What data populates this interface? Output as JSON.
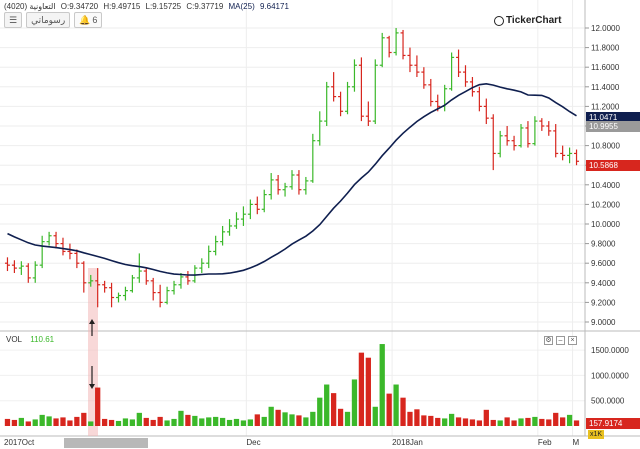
{
  "header": {
    "symbol": "التعاونية (4020)",
    "open": "O:9.34720",
    "high": "H:9.49715",
    "low": "L:9.15725",
    "close": "C:9.37719",
    "ma_label": "MA(25)",
    "ma_value": "9.64171"
  },
  "toolbar": {
    "drawings_label": "رسوماتي",
    "alerts_count": "6"
  },
  "logo": {
    "text": "TickerChart"
  },
  "price_axis": {
    "ticks": [
      "12.0000",
      "11.8000",
      "11.6000",
      "11.4000",
      "11.2000",
      "11.0000",
      "10.8000",
      "10.6000",
      "10.4000",
      "10.2000",
      "10.0000",
      "9.8000",
      "9.6000",
      "9.4000",
      "9.2000",
      "9.0000"
    ],
    "ma_label": "11.0471",
    "last_close_label": "10.9955",
    "current_label": "10.5868",
    "colors": {
      "ma_label_bg": "#0f1f4f",
      "last_close_bg": "#9a9a9a",
      "current_bg": "#d7261e"
    }
  },
  "volume": {
    "legend_name": "VOL",
    "legend_value": "110.61",
    "ticks": [
      "1500.0000",
      "1000.0000",
      "500.0000"
    ],
    "current_label": "157.9174",
    "unit_badge": "x1K"
  },
  "time_axis": {
    "labels": [
      "2017Oct",
      "Dec",
      "2018Jan",
      "Feb",
      "M"
    ]
  },
  "colors": {
    "up": "#3bb82a",
    "down": "#d7261e",
    "ma": "#0f1f4f"
  },
  "chart_data": {
    "type": "bar",
    "price_range": [
      9.0,
      12.0
    ],
    "volume_range": [
      0,
      1700
    ],
    "ma_period": 25,
    "bars": [
      {
        "o": 9.6,
        "h": 9.66,
        "l": 9.52,
        "c": 9.58
      },
      {
        "o": 9.58,
        "h": 9.63,
        "l": 9.5,
        "c": 9.55
      },
      {
        "o": 9.55,
        "h": 9.62,
        "l": 9.48,
        "c": 9.57
      },
      {
        "o": 9.57,
        "h": 9.6,
        "l": 9.4,
        "c": 9.45
      },
      {
        "o": 9.45,
        "h": 9.62,
        "l": 9.4,
        "c": 9.58
      },
      {
        "o": 9.58,
        "h": 9.88,
        "l": 9.55,
        "c": 9.82
      },
      {
        "o": 9.82,
        "h": 9.92,
        "l": 9.78,
        "c": 9.88
      },
      {
        "o": 9.88,
        "h": 9.92,
        "l": 9.75,
        "c": 9.8
      },
      {
        "o": 9.8,
        "h": 9.86,
        "l": 9.68,
        "c": 9.72
      },
      {
        "o": 9.72,
        "h": 9.8,
        "l": 9.64,
        "c": 9.7
      },
      {
        "o": 9.7,
        "h": 9.74,
        "l": 9.55,
        "c": 9.6
      },
      {
        "o": 9.6,
        "h": 9.62,
        "l": 9.3,
        "c": 9.4
      },
      {
        "o": 9.4,
        "h": 9.48,
        "l": 9.36,
        "c": 9.42
      },
      {
        "o": 9.42,
        "h": 9.55,
        "l": 9.15,
        "c": 9.38
      },
      {
        "o": 9.38,
        "h": 9.42,
        "l": 9.3,
        "c": 9.35
      },
      {
        "o": 9.35,
        "h": 9.4,
        "l": 9.15,
        "c": 9.25
      },
      {
        "o": 9.25,
        "h": 9.3,
        "l": 9.2,
        "c": 9.27
      },
      {
        "o": 9.27,
        "h": 9.36,
        "l": 9.22,
        "c": 9.32
      },
      {
        "o": 9.32,
        "h": 9.48,
        "l": 9.3,
        "c": 9.45
      },
      {
        "o": 9.45,
        "h": 9.7,
        "l": 9.4,
        "c": 9.52
      },
      {
        "o": 9.52,
        "h": 9.55,
        "l": 9.38,
        "c": 9.42
      },
      {
        "o": 9.42,
        "h": 9.45,
        "l": 9.22,
        "c": 9.3
      },
      {
        "o": 9.3,
        "h": 9.38,
        "l": 9.15,
        "c": 9.2
      },
      {
        "o": 9.2,
        "h": 9.36,
        "l": 9.18,
        "c": 9.32
      },
      {
        "o": 9.32,
        "h": 9.42,
        "l": 9.28,
        "c": 9.38
      },
      {
        "o": 9.38,
        "h": 9.5,
        "l": 9.34,
        "c": 9.46
      },
      {
        "o": 9.46,
        "h": 9.52,
        "l": 9.38,
        "c": 9.42
      },
      {
        "o": 9.42,
        "h": 9.58,
        "l": 9.4,
        "c": 9.55
      },
      {
        "o": 9.55,
        "h": 9.65,
        "l": 9.5,
        "c": 9.6
      },
      {
        "o": 9.6,
        "h": 9.78,
        "l": 9.55,
        "c": 9.72
      },
      {
        "o": 9.72,
        "h": 9.88,
        "l": 9.68,
        "c": 9.82
      },
      {
        "o": 9.82,
        "h": 9.98,
        "l": 9.78,
        "c": 9.92
      },
      {
        "o": 9.92,
        "h": 10.05,
        "l": 9.88,
        "c": 9.98
      },
      {
        "o": 9.98,
        "h": 10.12,
        "l": 9.95,
        "c": 10.05
      },
      {
        "o": 10.05,
        "h": 10.18,
        "l": 9.98,
        "c": 10.1
      },
      {
        "o": 10.1,
        "h": 10.25,
        "l": 10.05,
        "c": 10.2
      },
      {
        "o": 10.2,
        "h": 10.28,
        "l": 10.1,
        "c": 10.15
      },
      {
        "o": 10.15,
        "h": 10.35,
        "l": 10.12,
        "c": 10.3
      },
      {
        "o": 10.3,
        "h": 10.52,
        "l": 10.25,
        "c": 10.45
      },
      {
        "o": 10.45,
        "h": 10.5,
        "l": 10.3,
        "c": 10.35
      },
      {
        "o": 10.35,
        "h": 10.42,
        "l": 10.28,
        "c": 10.38
      },
      {
        "o": 10.38,
        "h": 10.55,
        "l": 10.35,
        "c": 10.5
      },
      {
        "o": 10.5,
        "h": 10.55,
        "l": 10.3,
        "c": 10.35
      },
      {
        "o": 10.35,
        "h": 10.48,
        "l": 10.3,
        "c": 10.44
      },
      {
        "o": 10.44,
        "h": 10.92,
        "l": 10.42,
        "c": 10.85
      },
      {
        "o": 10.85,
        "h": 11.15,
        "l": 10.8,
        "c": 11.05
      },
      {
        "o": 11.05,
        "h": 11.45,
        "l": 11.0,
        "c": 11.4
      },
      {
        "o": 11.4,
        "h": 11.55,
        "l": 11.25,
        "c": 11.3
      },
      {
        "o": 11.3,
        "h": 11.35,
        "l": 11.1,
        "c": 11.15
      },
      {
        "o": 11.15,
        "h": 11.45,
        "l": 11.12,
        "c": 11.4
      },
      {
        "o": 11.4,
        "h": 11.68,
        "l": 11.35,
        "c": 11.62
      },
      {
        "o": 11.62,
        "h": 11.7,
        "l": 11.05,
        "c": 11.1
      },
      {
        "o": 11.1,
        "h": 11.25,
        "l": 11.0,
        "c": 11.05
      },
      {
        "o": 11.05,
        "h": 11.68,
        "l": 11.02,
        "c": 11.62
      },
      {
        "o": 11.62,
        "h": 11.95,
        "l": 11.6,
        "c": 11.9
      },
      {
        "o": 11.9,
        "h": 11.92,
        "l": 11.7,
        "c": 11.75
      },
      {
        "o": 11.75,
        "h": 12.0,
        "l": 11.72,
        "c": 11.95
      },
      {
        "o": 11.95,
        "h": 11.98,
        "l": 11.68,
        "c": 11.72
      },
      {
        "o": 11.72,
        "h": 11.8,
        "l": 11.55,
        "c": 11.62
      },
      {
        "o": 11.62,
        "h": 11.72,
        "l": 11.5,
        "c": 11.55
      },
      {
        "o": 11.55,
        "h": 11.6,
        "l": 11.38,
        "c": 11.42
      },
      {
        "o": 11.42,
        "h": 11.48,
        "l": 11.2,
        "c": 11.25
      },
      {
        "o": 11.25,
        "h": 11.32,
        "l": 11.15,
        "c": 11.2
      },
      {
        "o": 11.2,
        "h": 11.42,
        "l": 11.15,
        "c": 11.38
      },
      {
        "o": 11.38,
        "h": 11.75,
        "l": 11.36,
        "c": 11.7
      },
      {
        "o": 11.7,
        "h": 11.78,
        "l": 11.5,
        "c": 11.55
      },
      {
        "o": 11.55,
        "h": 11.62,
        "l": 11.4,
        "c": 11.45
      },
      {
        "o": 11.45,
        "h": 11.5,
        "l": 11.3,
        "c": 11.35
      },
      {
        "o": 11.35,
        "h": 11.4,
        "l": 11.15,
        "c": 11.2
      },
      {
        "o": 11.2,
        "h": 11.28,
        "l": 11.02,
        "c": 11.08
      },
      {
        "o": 11.08,
        "h": 11.12,
        "l": 10.55,
        "c": 10.72
      },
      {
        "o": 10.72,
        "h": 10.95,
        "l": 10.68,
        "c": 10.9
      },
      {
        "o": 10.9,
        "h": 11.0,
        "l": 10.8,
        "c": 10.85
      },
      {
        "o": 10.85,
        "h": 10.9,
        "l": 10.75,
        "c": 10.8
      },
      {
        "o": 10.8,
        "h": 11.02,
        "l": 10.78,
        "c": 10.98
      },
      {
        "o": 10.98,
        "h": 11.05,
        "l": 10.78,
        "c": 10.82
      },
      {
        "o": 10.82,
        "h": 11.1,
        "l": 10.8,
        "c": 11.05
      },
      {
        "o": 11.05,
        "h": 11.08,
        "l": 10.95,
        "c": 11.0
      },
      {
        "o": 11.0,
        "h": 11.05,
        "l": 10.9,
        "c": 10.95
      },
      {
        "o": 10.95,
        "h": 11.02,
        "l": 10.68,
        "c": 10.72
      },
      {
        "o": 10.72,
        "h": 10.8,
        "l": 10.65,
        "c": 10.7
      },
      {
        "o": 10.7,
        "h": 10.78,
        "l": 10.62,
        "c": 10.72
      },
      {
        "o": 10.72,
        "h": 10.76,
        "l": 10.6,
        "c": 10.64
      }
    ],
    "volumes": [
      140,
      120,
      160,
      90,
      130,
      220,
      190,
      150,
      170,
      110,
      180,
      260,
      90,
      760,
      140,
      120,
      100,
      150,
      130,
      260,
      160,
      120,
      180,
      110,
      140,
      300,
      220,
      200,
      150,
      170,
      180,
      160,
      120,
      140,
      110,
      130,
      230,
      180,
      380,
      320,
      270,
      230,
      210,
      170,
      280,
      560,
      820,
      650,
      340,
      280,
      920,
      1450,
      1350,
      380,
      1620,
      640,
      820,
      560,
      280,
      330,
      210,
      200,
      160,
      150,
      240,
      170,
      150,
      130,
      110,
      320,
      120,
      110,
      170,
      110,
      150,
      160,
      180,
      140,
      130,
      260,
      170,
      220,
      110
    ]
  }
}
